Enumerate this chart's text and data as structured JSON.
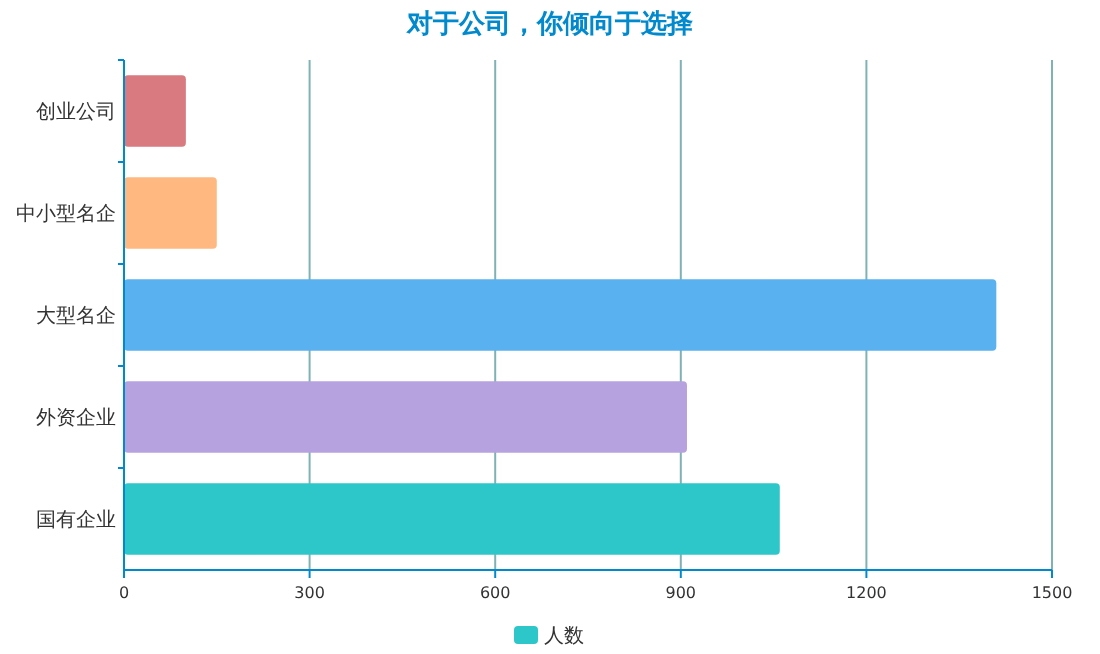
{
  "chart_data": {
    "type": "bar",
    "orientation": "horizontal",
    "title": "对于公司，你倾向于选择",
    "categories": [
      "创业公司",
      "中小型名企",
      "大型名企",
      "外资企业",
      "国有企业"
    ],
    "series": [
      {
        "name": "人数",
        "color": "#2ec7c9",
        "colors": [
          "#d87a80",
          "#ffb980",
          "#5ab1ef",
          "#b6a2de",
          "#2ec7c9"
        ],
        "values": [
          100,
          150,
          1410,
          910,
          1060
        ]
      }
    ],
    "xlim": [
      0,
      1500
    ],
    "xticks": [
      0,
      300,
      600,
      900,
      1200,
      1500
    ],
    "grid": "x",
    "legend": "bottom"
  }
}
